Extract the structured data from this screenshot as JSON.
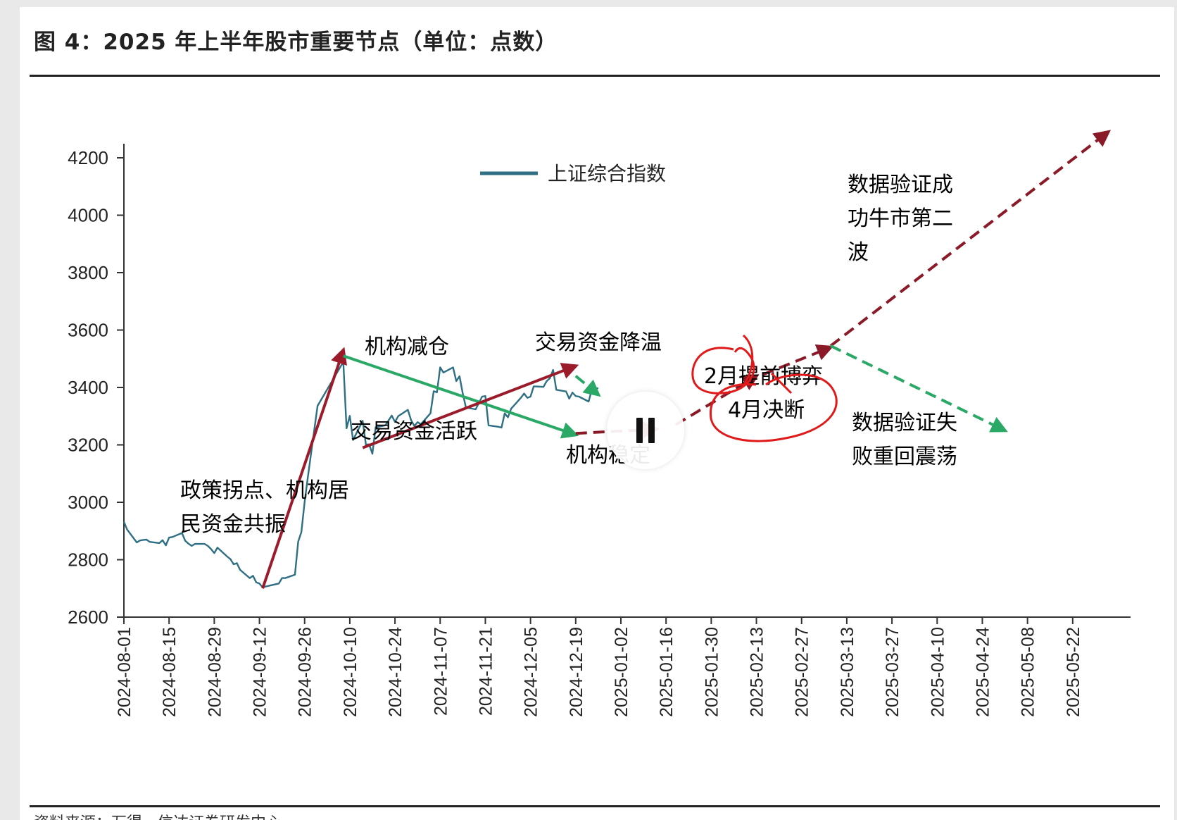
{
  "figure": {
    "title": "图 4：2025 年上半年股市重要节点（单位：点数）",
    "source": "资料来源：万得，信达证券研发中心"
  },
  "colors": {
    "series": "#2e6f83",
    "dark_red": "#9b1b2b",
    "dashed_red": "#8a1a27",
    "green": "#2aa866",
    "label_red": "#a8475c",
    "label_green": "#39a86a",
    "ink_red": "#e01a1a"
  },
  "chart_data": {
    "type": "line",
    "title": "",
    "xlabel": "",
    "ylabel": "",
    "ylim": [
      2600,
      4200
    ],
    "yticks": [
      2600,
      2800,
      3000,
      3200,
      3400,
      3600,
      3800,
      4000,
      4200
    ],
    "xlim": [
      "2024-08-01",
      "2025-06-05"
    ],
    "xticks": [
      "2024-08-01",
      "2024-08-15",
      "2024-08-29",
      "2024-09-12",
      "2024-09-26",
      "2024-10-10",
      "2024-10-24",
      "2024-11-07",
      "2024-11-21",
      "2024-12-05",
      "2024-12-19",
      "2025-01-02",
      "2025-01-16",
      "2025-01-30",
      "2025-02-13",
      "2025-02-27",
      "2025-03-13",
      "2025-03-27",
      "2025-04-10",
      "2025-04-24",
      "2025-05-08",
      "2025-05-22"
    ],
    "legend": "top-center",
    "series": [
      {
        "name": "上证综合指数",
        "points": [
          [
            "2024-08-01",
            2932
          ],
          [
            "2024-08-02",
            2905
          ],
          [
            "2024-08-05",
            2860
          ],
          [
            "2024-08-06",
            2867
          ],
          [
            "2024-08-07",
            2869
          ],
          [
            "2024-08-08",
            2870
          ],
          [
            "2024-08-09",
            2862
          ],
          [
            "2024-08-12",
            2858
          ],
          [
            "2024-08-13",
            2868
          ],
          [
            "2024-08-14",
            2850
          ],
          [
            "2024-08-15",
            2877
          ],
          [
            "2024-08-16",
            2879
          ],
          [
            "2024-08-19",
            2893
          ],
          [
            "2024-08-20",
            2866
          ],
          [
            "2024-08-21",
            2856
          ],
          [
            "2024-08-22",
            2848
          ],
          [
            "2024-08-23",
            2855
          ],
          [
            "2024-08-26",
            2855
          ],
          [
            "2024-08-27",
            2848
          ],
          [
            "2024-08-28",
            2837
          ],
          [
            "2024-08-29",
            2823
          ],
          [
            "2024-08-30",
            2842
          ],
          [
            "2024-09-02",
            2811
          ],
          [
            "2024-09-03",
            2802
          ],
          [
            "2024-09-04",
            2784
          ],
          [
            "2024-09-05",
            2788
          ],
          [
            "2024-09-06",
            2765
          ],
          [
            "2024-09-09",
            2736
          ],
          [
            "2024-09-10",
            2744
          ],
          [
            "2024-09-11",
            2721
          ],
          [
            "2024-09-12",
            2717
          ],
          [
            "2024-09-13",
            2704
          ],
          [
            "2024-09-18",
            2717
          ],
          [
            "2024-09-19",
            2736
          ],
          [
            "2024-09-20",
            2736
          ],
          [
            "2024-09-23",
            2748
          ],
          [
            "2024-09-24",
            2863
          ],
          [
            "2024-09-25",
            2896
          ],
          [
            "2024-09-26",
            3000
          ],
          [
            "2024-09-27",
            3087
          ],
          [
            "2024-09-30",
            3336
          ],
          [
            "2024-10-08",
            3489
          ],
          [
            "2024-10-09",
            3258
          ],
          [
            "2024-10-10",
            3301
          ],
          [
            "2024-10-11",
            3217
          ],
          [
            "2024-10-14",
            3284
          ],
          [
            "2024-10-15",
            3201
          ],
          [
            "2024-10-16",
            3202
          ],
          [
            "2024-10-17",
            3169
          ],
          [
            "2024-10-18",
            3261
          ],
          [
            "2024-10-21",
            3268
          ],
          [
            "2024-10-22",
            3285
          ],
          [
            "2024-10-23",
            3302
          ],
          [
            "2024-10-24",
            3280
          ],
          [
            "2024-10-25",
            3300
          ],
          [
            "2024-10-28",
            3322
          ],
          [
            "2024-10-29",
            3286
          ],
          [
            "2024-10-30",
            3266
          ],
          [
            "2024-10-31",
            3279
          ],
          [
            "2024-11-01",
            3272
          ],
          [
            "2024-11-04",
            3310
          ],
          [
            "2024-11-05",
            3387
          ],
          [
            "2024-11-06",
            3383
          ],
          [
            "2024-11-07",
            3470
          ],
          [
            "2024-11-08",
            3452
          ],
          [
            "2024-11-11",
            3470
          ],
          [
            "2024-11-12",
            3422
          ],
          [
            "2024-11-13",
            3439
          ],
          [
            "2024-11-14",
            3379
          ],
          [
            "2024-11-15",
            3330
          ],
          [
            "2024-11-18",
            3324
          ],
          [
            "2024-11-19",
            3346
          ],
          [
            "2024-11-20",
            3368
          ],
          [
            "2024-11-21",
            3370
          ],
          [
            "2024-11-22",
            3268
          ],
          [
            "2024-11-25",
            3263
          ],
          [
            "2024-11-26",
            3260
          ],
          [
            "2024-11-27",
            3310
          ],
          [
            "2024-11-28",
            3296
          ],
          [
            "2024-11-29",
            3326
          ],
          [
            "2024-12-02",
            3364
          ],
          [
            "2024-12-03",
            3379
          ],
          [
            "2024-12-04",
            3364
          ],
          [
            "2024-12-05",
            3368
          ],
          [
            "2024-12-06",
            3404
          ],
          [
            "2024-12-09",
            3402
          ],
          [
            "2024-12-10",
            3422
          ],
          [
            "2024-12-11",
            3432
          ],
          [
            "2024-12-12",
            3461
          ],
          [
            "2024-12-13",
            3392
          ],
          [
            "2024-12-16",
            3386
          ],
          [
            "2024-12-17",
            3361
          ],
          [
            "2024-12-18",
            3382
          ],
          [
            "2024-12-19",
            3370
          ],
          [
            "2024-12-20",
            3368
          ],
          [
            "2024-12-23",
            3351
          ],
          [
            "2024-12-24",
            3393
          ],
          [
            "2024-12-25",
            3394
          ],
          [
            "2024-12-26",
            3398
          ]
        ]
      }
    ],
    "annotations": {
      "arrows_solid": [
        {
          "from": [
            "2024-09-13",
            2700
          ],
          "to": [
            "2024-10-08",
            3530
          ],
          "color": "dark_red"
        },
        {
          "from": [
            "2024-10-08",
            3510
          ],
          "to": [
            "2024-12-19",
            3235
          ],
          "color": "green"
        },
        {
          "from": [
            "2024-10-14",
            3190
          ],
          "to": [
            "2024-12-19",
            3475
          ],
          "color": "dark_red"
        }
      ],
      "arrows_dashed": [
        {
          "from": [
            "2024-12-19",
            3240
          ],
          "to": [
            "2025-01-13",
            3255
          ],
          "color": "dashed_red"
        },
        {
          "from": [
            "2025-01-19",
            3270
          ],
          "to": [
            "2025-02-13",
            3440
          ],
          "color": "dashed_red"
        },
        {
          "from": [
            "2025-02-15",
            3445
          ],
          "to": [
            "2025-03-08",
            3540
          ],
          "color": "dashed_red"
        },
        {
          "from": [
            "2025-03-08",
            3545
          ],
          "to": [
            "2025-06-02",
            4290
          ],
          "color": "dashed_red"
        },
        {
          "from": [
            "2025-03-08",
            3545
          ],
          "to": [
            "2025-05-01",
            3250
          ],
          "color": "green"
        },
        {
          "from": [
            "2024-12-19",
            3440
          ],
          "to": [
            "2024-12-26",
            3375
          ],
          "color": "green"
        }
      ],
      "labels": [
        {
          "text": "机构减仓",
          "color": "label_green"
        },
        {
          "text": "交易资金降温",
          "color": "label_green"
        },
        {
          "text": "交易资金活跃",
          "color": "label_red"
        },
        {
          "text": "机构稳定",
          "color": "label_red"
        },
        {
          "text": "政策拐点、机构居",
          "color": "label_red"
        },
        {
          "text": "民资金共振",
          "color": "label_red"
        },
        {
          "text": "数据验证成",
          "color": "label_red"
        },
        {
          "text": "功牛市第二",
          "color": "label_red"
        },
        {
          "text": "波",
          "color": "label_red"
        },
        {
          "text": "2月提前博弈",
          "color": "label_red"
        },
        {
          "text": "4月决断",
          "color": "label_red"
        },
        {
          "text": "数据验证失",
          "color": "label_green"
        },
        {
          "text": "败重回震荡",
          "color": "label_green"
        }
      ]
    }
  },
  "player": {
    "pause_icon": "pause-icon"
  }
}
